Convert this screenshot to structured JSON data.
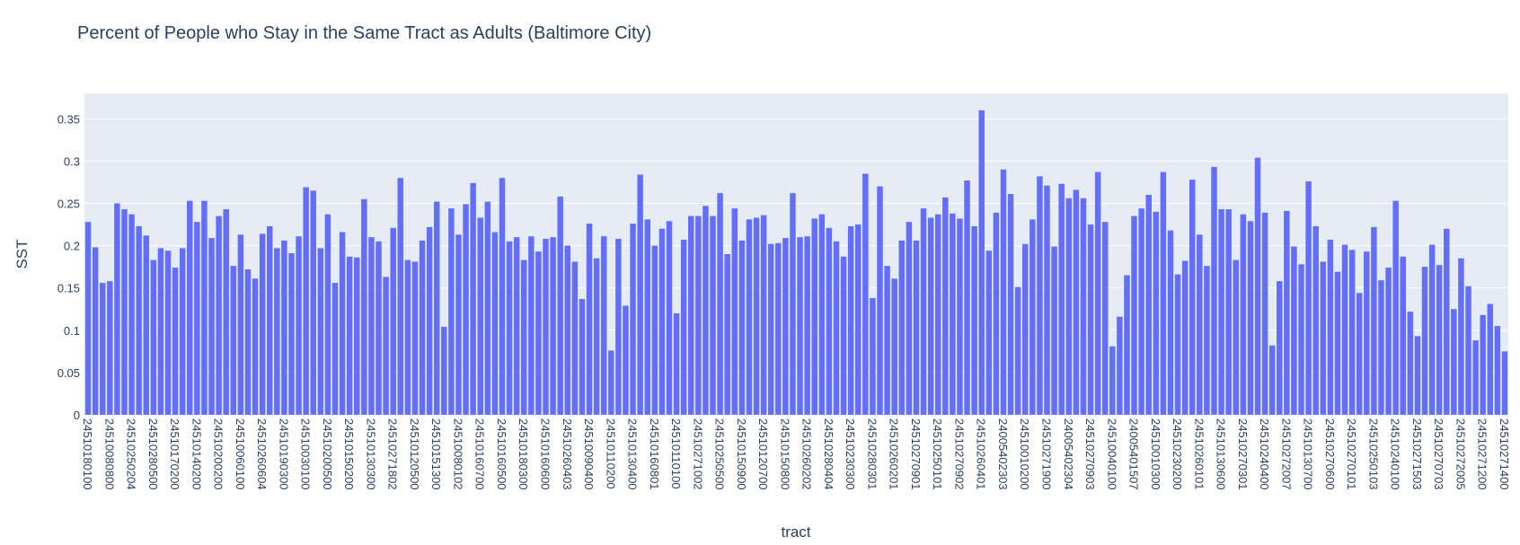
{
  "chart_data": {
    "type": "bar",
    "title": "Percent of People who Stay in the Same Tract as Adults (Baltimore City)",
    "xlabel": "tract",
    "ylabel": "SST",
    "ylim": [
      0,
      0.38
    ],
    "y_ticks": [
      0,
      0.05,
      0.1,
      0.15,
      0.2,
      0.25,
      0.3,
      0.35
    ],
    "y_tick_labels": [
      "0",
      "0.05",
      "0.1",
      "0.15",
      "0.2",
      "0.25",
      "0.3",
      "0.35"
    ],
    "x_tick_labels": [
      "24510180100",
      "24510080800",
      "24510250204",
      "24510280500",
      "24510170200",
      "24510140200",
      "24510200200",
      "24510060100",
      "24510260604",
      "24510190300",
      "24510030100",
      "24510200500",
      "24510150200",
      "24510130300",
      "24510271802",
      "24510120500",
      "24510151300",
      "24510080102",
      "24510160700",
      "24510160500",
      "24510180300",
      "24510160600",
      "24510260403",
      "24510090400",
      "24510110200",
      "24510130400",
      "24510160801",
      "24510110100",
      "24510271002",
      "24510250500",
      "24510150900",
      "24510120700",
      "24510150800",
      "24510260202",
      "24510280404",
      "24510230300",
      "24510280301",
      "24510260201",
      "24510270901",
      "24510250101",
      "24510270902",
      "24510260401",
      "24005402303",
      "24510010200",
      "24510271900",
      "24005402304",
      "24510270903",
      "24510040100",
      "24005401507",
      "24510010300",
      "24510230200",
      "24510260101",
      "24510130600",
      "24510270301",
      "24510240400",
      "24510272007",
      "24510130700",
      "24510270600",
      "24510270101",
      "24510250103",
      "24510240100",
      "24510271503",
      "24510270703",
      "24510272005",
      "24510271200",
      "24510271400"
    ],
    "colors": {
      "bar": "#636efa",
      "plot_bg": "#e5ecf6",
      "grid": "#ffffff",
      "text": "#2a3f5f"
    },
    "values": [
      0.228,
      0.198,
      0.156,
      0.158,
      0.25,
      0.243,
      0.237,
      0.223,
      0.212,
      0.183,
      0.197,
      0.194,
      0.174,
      0.197,
      0.253,
      0.228,
      0.253,
      0.209,
      0.235,
      0.243,
      0.176,
      0.213,
      0.172,
      0.161,
      0.214,
      0.223,
      0.197,
      0.206,
      0.191,
      0.211,
      0.269,
      0.265,
      0.197,
      0.237,
      0.156,
      0.216,
      0.187,
      0.186,
      0.255,
      0.21,
      0.205,
      0.163,
      0.221,
      0.28,
      0.183,
      0.181,
      0.206,
      0.222,
      0.252,
      0.104,
      0.244,
      0.213,
      0.249,
      0.274,
      0.233,
      0.252,
      0.216,
      0.28,
      0.205,
      0.21,
      0.183,
      0.211,
      0.193,
      0.208,
      0.21,
      0.258,
      0.2,
      0.181,
      0.137,
      0.226,
      0.185,
      0.211,
      0.076,
      0.208,
      0.129,
      0.226,
      0.284,
      0.231,
      0.2,
      0.22,
      0.229,
      0.12,
      0.207,
      0.235,
      0.235,
      0.247,
      0.235,
      0.262,
      0.19,
      0.244,
      0.206,
      0.231,
      0.233,
      0.236,
      0.202,
      0.203,
      0.209,
      0.262,
      0.21,
      0.211,
      0.232,
      0.237,
      0.221,
      0.205,
      0.187,
      0.223,
      0.225,
      0.285,
      0.138,
      0.27,
      0.176,
      0.161,
      0.206,
      0.228,
      0.206,
      0.244,
      0.233,
      0.237,
      0.257,
      0.238,
      0.232,
      0.277,
      0.223,
      0.36,
      0.194,
      0.239,
      0.29,
      0.261,
      0.151,
      0.202,
      0.231,
      0.282,
      0.271,
      0.199,
      0.273,
      0.256,
      0.266,
      0.256,
      0.225,
      0.287,
      0.228,
      0.081,
      0.116,
      0.165,
      0.235,
      0.244,
      0.26,
      0.24,
      0.287,
      0.218,
      0.166,
      0.182,
      0.278,
      0.213,
      0.176,
      0.293,
      0.243,
      0.243,
      0.183,
      0.237,
      0.229,
      0.304,
      0.239,
      0.082,
      0.158,
      0.241,
      0.199,
      0.178,
      0.276,
      0.223,
      0.181,
      0.207,
      0.169,
      0.201,
      0.195,
      0.144,
      0.193,
      0.222,
      0.159,
      0.174,
      0.253,
      0.187,
      0.122,
      0.093,
      0.175,
      0.201,
      0.177,
      0.22,
      0.125,
      0.185,
      0.152,
      0.088,
      0.118,
      0.131,
      0.105,
      0.075
    ]
  }
}
